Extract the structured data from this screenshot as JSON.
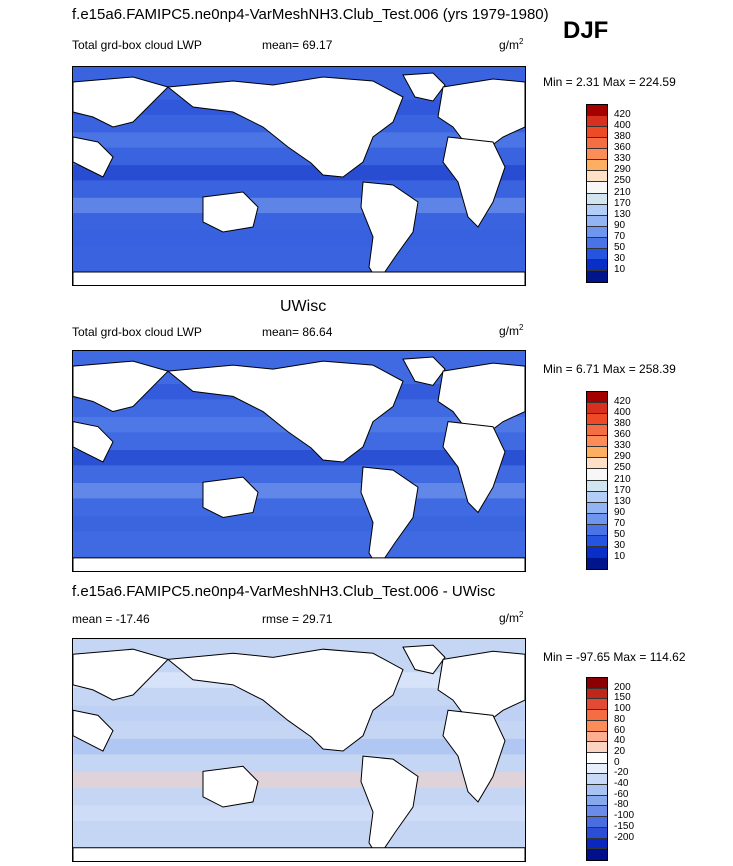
{
  "header": {
    "title": "f.e15a6.FAMIPC5.ne0np4-VarMeshNH3.Club_Test.006 (yrs 1979-1980)",
    "season": "DJF"
  },
  "panels": [
    {
      "title": "",
      "left_label": "Total grd-box cloud LWP",
      "mid_label": "mean=  69.17",
      "units": "g/m",
      "units_sup": "2",
      "minmax": "Min =   2.31 Max = 224.59",
      "colors": [
        "#a50000",
        "#d7301f",
        "#ef4a27",
        "#f46d43",
        "#fc8d59",
        "#fdae61",
        "#fde0c5",
        "#f7f7f7",
        "#d1e5f0",
        "#b2cdf7",
        "#92b4f2",
        "#6f96ee",
        "#4a73e8",
        "#2554e0",
        "#0a2ec8",
        "#00148c"
      ],
      "ticks": [
        "420",
        "400",
        "380",
        "360",
        "330",
        "290",
        "250",
        "210",
        "170",
        "130",
        "90",
        "70",
        "50",
        "30",
        "10"
      ],
      "fill": "#3a63e0"
    },
    {
      "title": "UWisc",
      "left_label": "Total grd-box cloud LWP",
      "mid_label": "mean=  86.64",
      "units": "g/m",
      "units_sup": "2",
      "minmax": "Min =   6.71 Max = 258.39",
      "colors": [
        "#a50000",
        "#d7301f",
        "#ef4a27",
        "#f46d43",
        "#fc8d59",
        "#fdae61",
        "#fde0c5",
        "#f7f7f7",
        "#d1e5f0",
        "#b2cdf7",
        "#92b4f2",
        "#6f96ee",
        "#4a73e8",
        "#2554e0",
        "#0a2ec8",
        "#00148c"
      ],
      "ticks": [
        "420",
        "400",
        "380",
        "360",
        "330",
        "290",
        "250",
        "210",
        "170",
        "130",
        "90",
        "70",
        "50",
        "30",
        "10"
      ],
      "fill": "#3f6ae2"
    },
    {
      "title": "f.e15a6.FAMIPC5.ne0np4-VarMeshNH3.Club_Test.006 - UWisc",
      "left_label": "mean = -17.46",
      "mid_label": "rmse =  29.71",
      "units": "g/m",
      "units_sup": "2",
      "minmax": "Min = -97.65 Max = 114.62",
      "colors": [
        "#8b0000",
        "#c0271b",
        "#e34a33",
        "#f46d43",
        "#fc8d59",
        "#fdae91",
        "#fcd4c2",
        "#ffffff",
        "#e8effc",
        "#c8d9f7",
        "#a8c2f2",
        "#88a8ee",
        "#6a8ce8",
        "#4a6ee0",
        "#2a4ed6",
        "#0a28c0",
        "#00108c"
      ],
      "ticks": [
        "200",
        "150",
        "100",
        "80",
        "60",
        "40",
        "20",
        "0",
        "-20",
        "-40",
        "-60",
        "-80",
        "-100",
        "-150",
        "-200"
      ],
      "fill": "#c5d6f5"
    }
  ]
}
